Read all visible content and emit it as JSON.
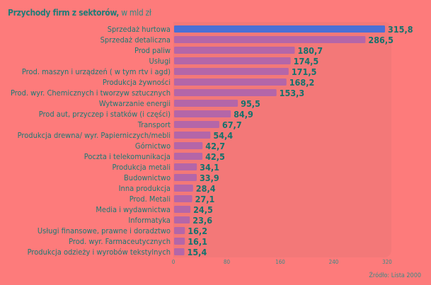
{
  "title": "Przychody firm z sektorów,",
  "subtitle": " w mld zł",
  "source": "Źródło: Lista 2000",
  "colors": {
    "background": "#fd7b7b",
    "bar": "#b466a8",
    "highlight": "#4a70d6",
    "value_text": "#14726d"
  },
  "chart_data": {
    "type": "bar",
    "orientation": "horizontal",
    "title": "Przychody firm z sektorów, w mld zł",
    "categories": [
      "Sprzedaż hurtowa",
      "Sprzedaż detaliczna",
      "Prod paliw",
      "Usługi",
      "Prod. maszyn i urządzeń ( w tym rtv i agd)",
      "Produkcja żywności",
      "Prod. wyr. Chemicznych i tworzyw sztucznych",
      "Wytwarzanie energii",
      "Prod aut, przyczep i statków (i części)",
      "Transport",
      "Produkcja drewna/ wyr. Papierniczych/mebli",
      "Górnictwo",
      "Poczta i telekomunikacja",
      "Produkcja metali",
      "Budownictwo",
      "Inna produkcja",
      "Prod. Metali",
      "Media i wydawnictwa",
      "Informatyka",
      "Usługi finansowe, prawne i doradztwo",
      "Prod. wyr. Farmaceutycznych",
      "Produkcja odzieży i wyrobów tekstylnych"
    ],
    "values": [
      315.8,
      286.5,
      180.7,
      174.5,
      171.5,
      168.2,
      153.3,
      95.5,
      84.9,
      67.7,
      54.4,
      42.7,
      42.5,
      34.1,
      33.9,
      28.4,
      27.1,
      24.5,
      23.6,
      16.2,
      16.1,
      15.4
    ],
    "value_labels": [
      "315,8",
      "286,5",
      "180,7",
      "174,5",
      "171,5",
      "168,2",
      "153,3",
      "95,5",
      "84,9",
      "67,7",
      "54,4",
      "42,7",
      "42,5",
      "34,1",
      "33,9",
      "28,4",
      "27,1",
      "24,5",
      "23,6",
      "16,2",
      "16,1",
      "15,4"
    ],
    "xlim": [
      0,
      320
    ],
    "xticks": [
      "0",
      "80",
      "160",
      "240",
      "320"
    ],
    "grid": false,
    "highlighted_category": "Sprzedaż hurtowa"
  }
}
